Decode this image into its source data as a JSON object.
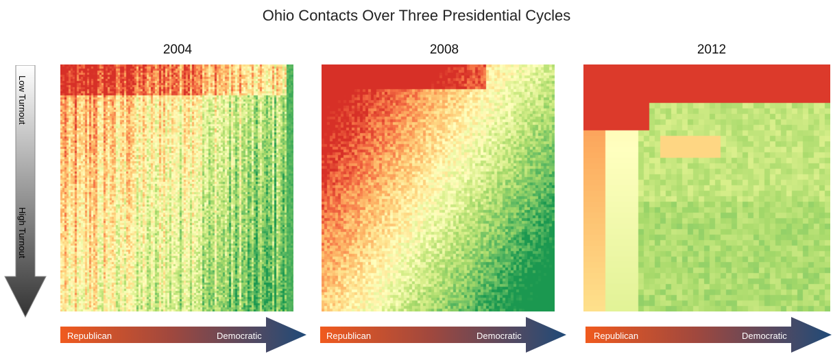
{
  "chart_data": {
    "type": "heatmap",
    "title": "Ohio Contacts Over Three Presidential Cycles",
    "y_axis": {
      "top_label": "Low Turnout",
      "bottom_label": "High Turnout"
    },
    "x_axis": {
      "left_label": "Republican",
      "right_label": "Democratic"
    },
    "color_scale": [
      "#d73027",
      "#f46d43",
      "#fdae61",
      "#fee08b",
      "#ffffbf",
      "#d9ef8b",
      "#a6d96a",
      "#66bd63",
      "#1a9850"
    ],
    "panels": [
      {
        "year": "2004"
      },
      {
        "year": "2008"
      },
      {
        "year": "2012"
      }
    ]
  }
}
